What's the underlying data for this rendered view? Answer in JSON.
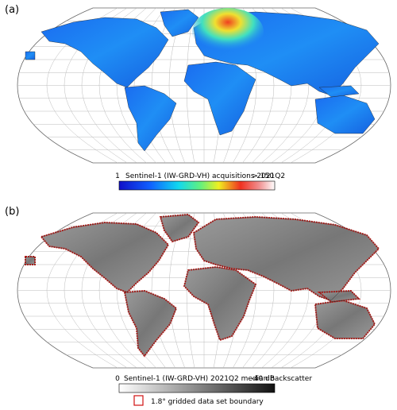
{
  "panels": [
    {
      "label": "(a)",
      "colorbar": {
        "min": "1",
        "title": "Sentinel-1 (IW-GRD-VH) acquisitions 2021Q2",
        "max": "> 150"
      }
    },
    {
      "label": "(b)",
      "colorbar": {
        "min": "0",
        "title": "Sentinel-1 (IW-GRD-VH) 2021Q2 median backscatter",
        "max": "-40 dB"
      },
      "legend": "1.8° gridded data set boundary"
    }
  ]
}
